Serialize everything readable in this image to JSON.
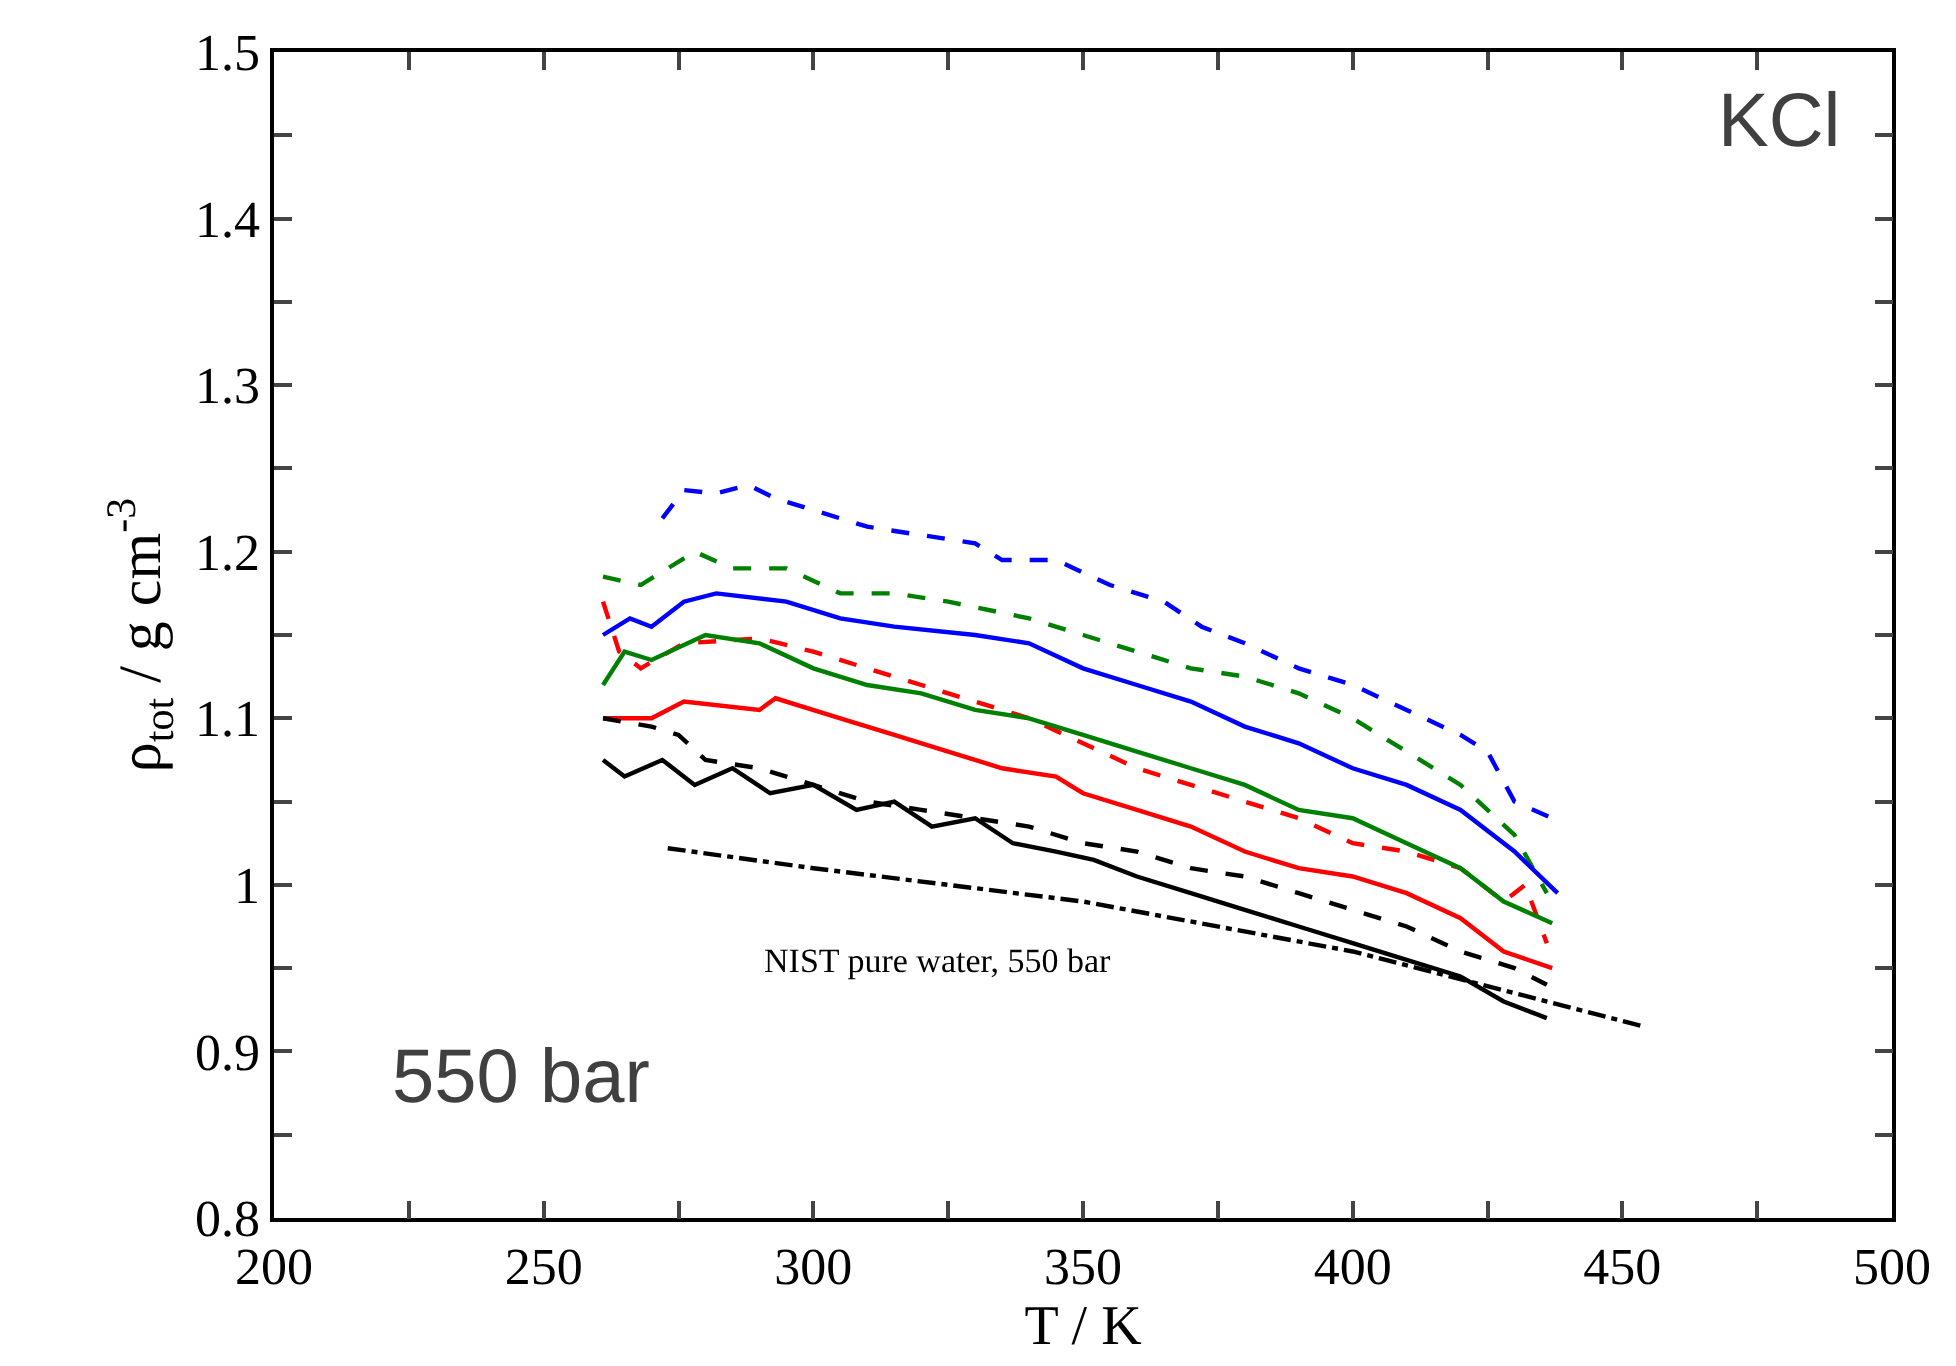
{
  "chart_data": {
    "type": "line",
    "xlabel": "T / K",
    "ylabel": "ρ$_{tot}$ / g cm$^{-3}$",
    "annotations": [
      "KCl",
      "550 bar",
      "NIST pure water, 550 bar"
    ],
    "xlim": [
      200,
      500
    ],
    "ylim": [
      0.8,
      1.5
    ],
    "xticks": [
      200,
      {
        "value": 225,
        "label": null
      },
      250,
      {
        "value": 275,
        "label": null
      },
      300,
      {
        "value": 325,
        "label": null
      },
      350,
      {
        "value": 375,
        "label": null
      },
      400,
      {
        "value": 425,
        "label": null
      },
      450,
      {
        "value": 475,
        "label": null
      },
      500
    ],
    "yticks": [
      0.8,
      {
        "value": 0.85,
        "label": null
      },
      0.9,
      {
        "value": 0.95,
        "label": null
      },
      {
        "value": 1.0,
        "label": "1"
      },
      {
        "value": 1.05,
        "label": null
      },
      1.1,
      {
        "value": 1.15,
        "label": null
      },
      1.2,
      {
        "value": 1.25,
        "label": null
      },
      1.3,
      {
        "value": 1.35,
        "label": null
      },
      1.4,
      {
        "value": 1.45,
        "label": null
      },
      1.5
    ],
    "marker": "none",
    "series": [
      {
        "color": "#0000ff",
        "line_style": "dashed",
        "x": [
          272,
          276,
          282,
          288,
          293,
          300,
          310,
          320,
          330,
          335,
          345,
          355,
          365,
          372,
          380,
          390,
          400,
          410,
          420,
          425,
          430,
          437
        ],
        "values": [
          1.22,
          1.237,
          1.235,
          1.24,
          1.232,
          1.225,
          1.215,
          1.21,
          1.205,
          1.195,
          1.195,
          1.18,
          1.17,
          1.155,
          1.145,
          1.13,
          1.12,
          1.105,
          1.09,
          1.08,
          1.05,
          1.04
        ]
      },
      {
        "color": "#008000",
        "line_style": "dashed",
        "x": [
          261,
          268,
          278,
          285,
          295,
          305,
          315,
          325,
          340,
          350,
          360,
          370,
          380,
          390,
          400,
          410,
          420,
          430,
          436
        ],
        "values": [
          1.185,
          1.18,
          1.2,
          1.19,
          1.19,
          1.175,
          1.175,
          1.17,
          1.16,
          1.15,
          1.14,
          1.13,
          1.125,
          1.115,
          1.1,
          1.08,
          1.06,
          1.03,
          0.995
        ]
      },
      {
        "color": "#0000ff",
        "line_style": "solid",
        "x": [
          261,
          266,
          270,
          276,
          282,
          295,
          305,
          315,
          330,
          340,
          350,
          360,
          370,
          380,
          390,
          400,
          410,
          420,
          430,
          438
        ],
        "values": [
          1.15,
          1.16,
          1.155,
          1.17,
          1.175,
          1.17,
          1.16,
          1.155,
          1.15,
          1.145,
          1.13,
          1.12,
          1.11,
          1.095,
          1.085,
          1.07,
          1.06,
          1.045,
          1.02,
          0.995
        ]
      },
      {
        "color": "#ff0000",
        "line_style": "dashed",
        "x": [
          261,
          264,
          268,
          276,
          290,
          300,
          310,
          320,
          330,
          340,
          350,
          360,
          370,
          380,
          390,
          400,
          410,
          420,
          428,
          432,
          436
        ],
        "values": [
          1.17,
          1.14,
          1.13,
          1.145,
          1.148,
          1.14,
          1.13,
          1.12,
          1.11,
          1.1,
          1.085,
          1.07,
          1.06,
          1.05,
          1.04,
          1.025,
          1.02,
          1.01,
          0.99,
          1.0,
          0.965
        ]
      },
      {
        "color": "#008000",
        "line_style": "solid",
        "x": [
          261,
          265,
          270,
          280,
          290,
          300,
          310,
          320,
          330,
          340,
          350,
          360,
          370,
          380,
          390,
          400,
          410,
          420,
          428,
          437
        ],
        "values": [
          1.12,
          1.14,
          1.135,
          1.15,
          1.145,
          1.13,
          1.12,
          1.115,
          1.105,
          1.1,
          1.09,
          1.08,
          1.07,
          1.06,
          1.045,
          1.04,
          1.025,
          1.01,
          0.99,
          0.977
        ]
      },
      {
        "color": "#ff0000",
        "line_style": "solid",
        "x": [
          261,
          270,
          276,
          290,
          293,
          305,
          315,
          325,
          335,
          345,
          350,
          360,
          370,
          380,
          390,
          400,
          410,
          420,
          428,
          437
        ],
        "values": [
          1.1,
          1.1,
          1.11,
          1.105,
          1.112,
          1.1,
          1.09,
          1.08,
          1.07,
          1.065,
          1.055,
          1.045,
          1.035,
          1.02,
          1.01,
          1.005,
          0.995,
          0.98,
          0.96,
          0.95
        ]
      },
      {
        "color": "#000000",
        "line_style": "dashed",
        "x": [
          261,
          270,
          275,
          280,
          290,
          300,
          310,
          320,
          330,
          340,
          350,
          360,
          370,
          380,
          390,
          400,
          410,
          420,
          430,
          436
        ],
        "values": [
          1.1,
          1.095,
          1.09,
          1.075,
          1.07,
          1.06,
          1.05,
          1.045,
          1.04,
          1.035,
          1.025,
          1.02,
          1.01,
          1.005,
          0.995,
          0.985,
          0.975,
          0.96,
          0.95,
          0.94
        ]
      },
      {
        "color": "#000000",
        "line_style": "solid",
        "x": [
          261,
          265,
          272,
          278,
          285,
          292,
          300,
          308,
          315,
          322,
          330,
          337,
          345,
          352,
          360,
          370,
          380,
          390,
          400,
          410,
          420,
          428,
          436
        ],
        "values": [
          1.075,
          1.065,
          1.075,
          1.06,
          1.07,
          1.055,
          1.06,
          1.045,
          1.05,
          1.035,
          1.04,
          1.025,
          1.02,
          1.015,
          1.005,
          0.995,
          0.985,
          0.975,
          0.965,
          0.955,
          0.945,
          0.93,
          0.92
        ]
      },
      {
        "color": "#000000",
        "line_style": "dashdot",
        "x": [
          273,
          300,
          350,
          400,
          430,
          454
        ],
        "values": [
          1.022,
          1.01,
          0.99,
          0.96,
          0.935,
          0.915
        ]
      }
    ]
  }
}
